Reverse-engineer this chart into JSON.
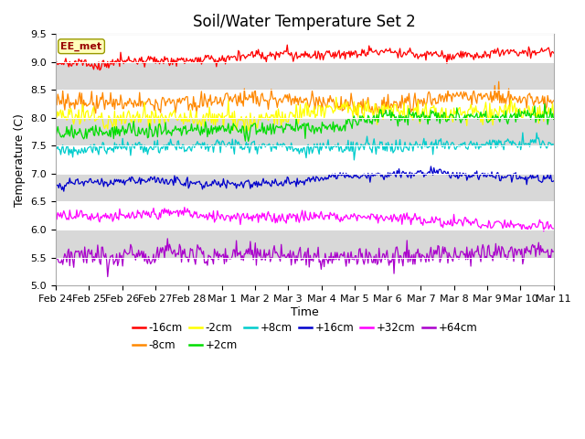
{
  "title": "Soil/Water Temperature Set 2",
  "xlabel": "Time",
  "ylabel": "Temperature (C)",
  "ylim": [
    5.0,
    9.5
  ],
  "xlim_days": 15,
  "annotation": "EE_met",
  "background_color": "#ffffff",
  "plot_bg_color": "#d8d8d8",
  "grid_color": "#ffffff",
  "series": [
    {
      "label": "-16cm",
      "color": "#ff0000",
      "base": 9.0,
      "trend": -0.03,
      "noise": 0.045,
      "seed": 1
    },
    {
      "label": "-8cm",
      "color": "#ff8800",
      "base": 8.35,
      "trend": 0.005,
      "noise": 0.08,
      "seed": 2
    },
    {
      "label": "-2cm",
      "color": "#ffff00",
      "base": 8.08,
      "trend": 0.008,
      "noise": 0.09,
      "seed": 3
    },
    {
      "label": "+2cm",
      "color": "#00dd00",
      "base": 7.72,
      "trend": 0.025,
      "noise": 0.07,
      "seed": 4
    },
    {
      "label": "+8cm",
      "color": "#00cccc",
      "base": 7.42,
      "trend": 0.022,
      "noise": 0.06,
      "seed": 5
    },
    {
      "label": "+16cm",
      "color": "#0000cc",
      "base": 6.8,
      "trend": 0.04,
      "noise": 0.04,
      "seed": 6
    },
    {
      "label": "+32cm",
      "color": "#ff00ff",
      "base": 6.28,
      "trend": 0.045,
      "noise": 0.05,
      "seed": 7
    },
    {
      "label": "+64cm",
      "color": "#aa00cc",
      "base": 5.48,
      "trend": 0.12,
      "noise": 0.09,
      "seed": 8
    }
  ],
  "tick_labels": [
    "Feb 24",
    "Feb 25",
    "Feb 26",
    "Feb 27",
    "Feb 28",
    "Mar 1",
    "Mar 2",
    "Mar 3",
    "Mar 4",
    "Mar 5",
    "Mar 6",
    "Mar 7",
    "Mar 8",
    "Mar 9",
    "Mar 10",
    "Mar 11"
  ],
  "n_points": 500,
  "title_fontsize": 12,
  "axis_fontsize": 9,
  "tick_fontsize": 8
}
